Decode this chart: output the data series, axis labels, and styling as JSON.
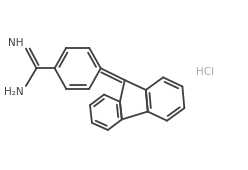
{
  "bg_color": "#ffffff",
  "line_color": "#404040",
  "hcl_color": "#aaaaaa",
  "lw": 1.3,
  "figsize": [
    2.48,
    1.7
  ],
  "dpi": 100,
  "hcl_text": "HCl",
  "hcl_fontsize": 7.5,
  "label_fontsize": 7.5,
  "imine_label": "NH",
  "amine_label": "H₂N"
}
